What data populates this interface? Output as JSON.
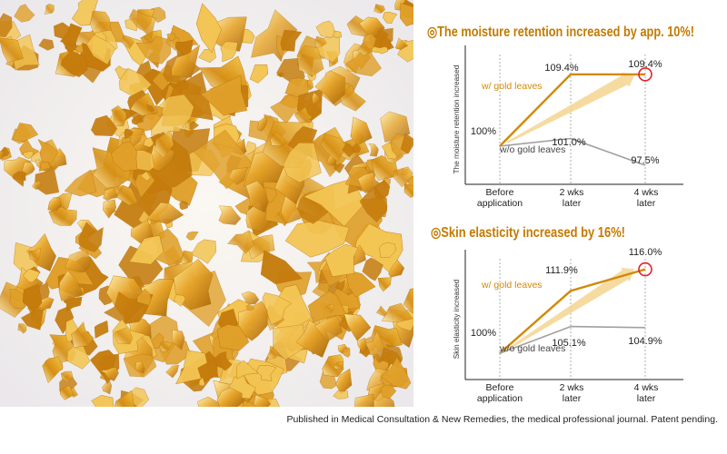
{
  "colors": {
    "gold_line": "#d18a06",
    "plain_line": "#a0a0a0",
    "title_text": "#c47a00",
    "highlight_circle": "#e0242e",
    "arrow_fill": "#f4d590",
    "axis": "#222222"
  },
  "photo": {
    "subject": "gold-leaf-flakes-photo"
  },
  "chart_data": [
    {
      "type": "line",
      "title": "◎The moisture retention increased by app. 10%!",
      "ylabel": "The moisture retention increased",
      "xlabel": "",
      "categories": [
        "Before application",
        "2 wks later",
        "4 wks later"
      ],
      "category_lines": [
        [
          "Before",
          "application"
        ],
        [
          "2 wks",
          "later"
        ],
        [
          "4 wks",
          "later"
        ]
      ],
      "ylim": [
        95,
        112
      ],
      "series": [
        {
          "name": "w/ gold leaves",
          "values": [
            100,
            109.4,
            109.4
          ],
          "labels": [
            "100%",
            "109.4%",
            "109.4%"
          ]
        },
        {
          "name": "w/o gold leaves",
          "values": [
            100,
            101.0,
            97.5
          ],
          "labels": [
            "",
            "101.0%",
            "97.5%"
          ]
        }
      ],
      "highlight": {
        "series": 0,
        "index": 2
      },
      "grid": "vertical-dashed"
    },
    {
      "type": "line",
      "title": "◎Skin elasticity increased by 16%!",
      "ylabel": "Skin elasticity increased",
      "xlabel": "",
      "categories": [
        "Before application",
        "2 wks later",
        "4 wks later"
      ],
      "category_lines": [
        [
          "Before",
          "application"
        ],
        [
          "2 wks",
          "later"
        ],
        [
          "4 wks",
          "later"
        ]
      ],
      "ylim": [
        95,
        118
      ],
      "series": [
        {
          "name": "w/ gold leaves",
          "values": [
            100,
            111.9,
            116.0
          ],
          "labels": [
            "100%",
            "111.9%",
            "116.0%"
          ]
        },
        {
          "name": "w/o gold leaves",
          "values": [
            100,
            105.1,
            104.9
          ],
          "labels": [
            "",
            "105.1%",
            "104.9%"
          ]
        }
      ],
      "highlight": {
        "series": 0,
        "index": 2
      },
      "grid": "vertical-dashed"
    }
  ],
  "footnote": "Published in Medical Consultation & New Remedies, the medical professional journal.  Patent pending."
}
